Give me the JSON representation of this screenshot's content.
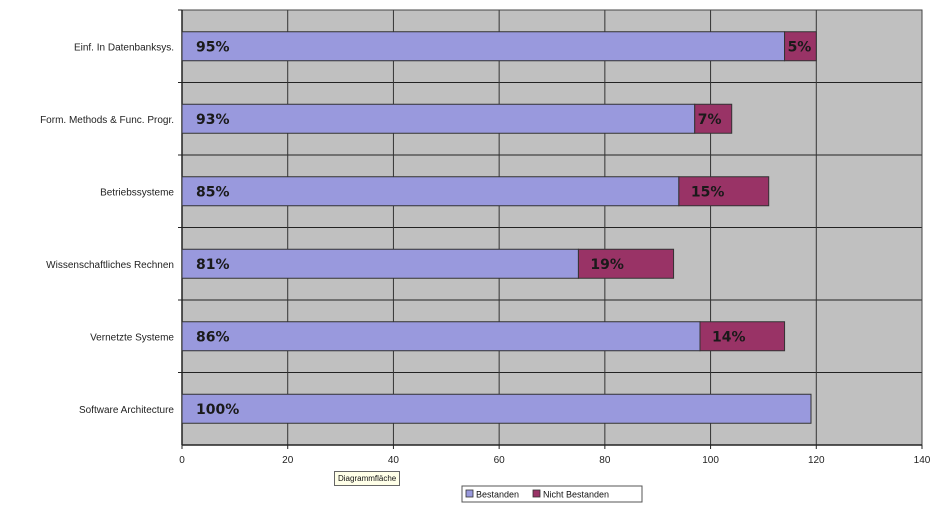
{
  "chart_data": {
    "type": "bar",
    "orientation": "horizontal",
    "stacked": true,
    "categories": [
      "Einf. In Datenbanksys.",
      "Form. Methods & Func. Progr.",
      "Betriebssysteme",
      "Wissenschaftliches Rechnen",
      "Vernetzte Systeme",
      "Software Architecture"
    ],
    "series": [
      {
        "name": "Bestanden",
        "color": "#9999dd",
        "values": [
          114,
          97,
          94,
          75,
          98,
          119
        ],
        "labels": [
          "95%",
          "93%",
          "85%",
          "81%",
          "86%",
          "100%"
        ]
      },
      {
        "name": "Nicht Bestanden",
        "color": "#993366",
        "values": [
          6,
          7,
          17,
          18,
          16,
          0
        ],
        "labels": [
          "5%",
          "7%",
          "15%",
          "19%",
          "14%",
          ""
        ]
      }
    ],
    "xlim": [
      0,
      140
    ],
    "xticks": [
      0,
      20,
      40,
      60,
      80,
      100,
      120,
      140
    ],
    "grid": true,
    "legend": "bottom",
    "plot_background": "#c0c0c0"
  },
  "tooltip": "Diagrammfläche"
}
